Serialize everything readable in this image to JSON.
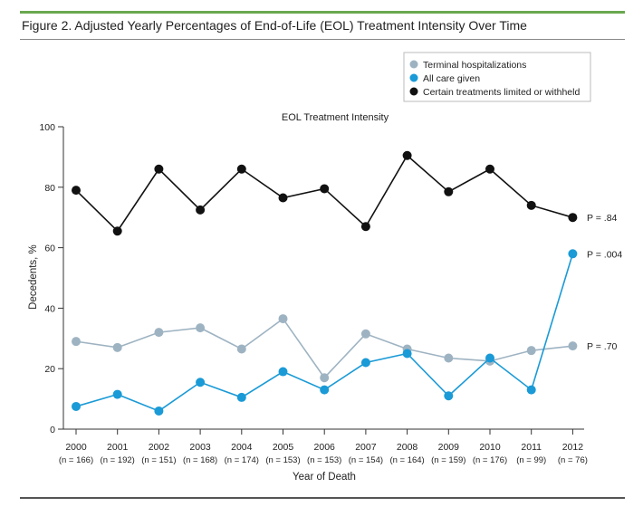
{
  "figure": {
    "title": "Figure 2. Adjusted Yearly Percentages of End-of-Life (EOL) Treatment Intensity Over Time"
  },
  "chart_data": {
    "type": "line",
    "title": "EOL Treatment Intensity",
    "xlabel": "Year of Death",
    "ylabel": "Decedents, %",
    "ylim": [
      0,
      100
    ],
    "yticks": [
      0,
      20,
      40,
      60,
      80,
      100
    ],
    "x": [
      "2000",
      "2001",
      "2002",
      "2003",
      "2004",
      "2005",
      "2006",
      "2007",
      "2008",
      "2009",
      "2010",
      "2011",
      "2012"
    ],
    "n_labels": [
      "(n = 166)",
      "(n = 192)",
      "(n = 151)",
      "(n = 168)",
      "(n = 174)",
      "(n = 153)",
      "(n = 153)",
      "(n = 154)",
      "(n = 164)",
      "(n = 159)",
      "(n = 176)",
      "(n = 99)",
      "(n = 76)"
    ],
    "legend_position": "top-right",
    "grid": false,
    "series": [
      {
        "name": "Terminal hospitalizations",
        "color": "#9eb3c2",
        "values": [
          29,
          27,
          32,
          33.5,
          26.5,
          36.5,
          17,
          31.5,
          26.5,
          23.5,
          22.5,
          26,
          27.5
        ],
        "p_label": "P = .70"
      },
      {
        "name": "All care given",
        "color": "#1a9ad6",
        "values": [
          7.5,
          11.5,
          6,
          15.5,
          10.5,
          19,
          13,
          22,
          25,
          11,
          23.5,
          13,
          58
        ],
        "p_label": "P = .004"
      },
      {
        "name": "Certain treatments limited or withheld",
        "color": "#111111",
        "values": [
          79,
          65.5,
          86,
          72.5,
          86,
          76.5,
          79.5,
          67,
          90.5,
          78.5,
          86,
          74,
          70
        ],
        "p_label": "P = .84"
      }
    ]
  }
}
